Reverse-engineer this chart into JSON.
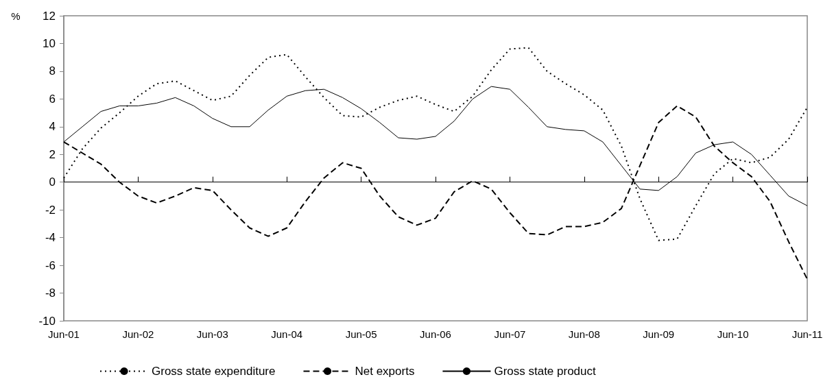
{
  "chart_data": {
    "type": "line",
    "ylabel": "%",
    "categories": [
      "Jun-01",
      null,
      null,
      null,
      "Jun-02",
      null,
      null,
      null,
      "Jun-03",
      null,
      null,
      null,
      "Jun-04",
      null,
      null,
      null,
      "Jun-05",
      null,
      null,
      null,
      "Jun-06",
      null,
      null,
      null,
      "Jun-07",
      null,
      null,
      null,
      "Jun-08",
      null,
      null,
      null,
      "Jun-09",
      null,
      null,
      null,
      "Jun-10",
      null,
      null,
      null,
      "Jun-11"
    ],
    "series": [
      {
        "name": "Gross state expenditure",
        "color": "#000000",
        "line_style": "dotted",
        "values": [
          0.3,
          2.4,
          3.9,
          5.0,
          6.2,
          7.1,
          7.3,
          6.6,
          5.9,
          6.2,
          7.7,
          9.0,
          9.2,
          7.6,
          6.1,
          4.8,
          4.7,
          5.4,
          5.9,
          6.2,
          5.6,
          5.1,
          6.2,
          8.1,
          9.6,
          9.7,
          8.0,
          7.1,
          6.3,
          5.2,
          2.6,
          -1.2,
          -4.2,
          -4.1,
          -1.7,
          0.6,
          1.7,
          1.4,
          1.8,
          3.1,
          5.4
        ]
      },
      {
        "name": "Net exports",
        "color": "#000000",
        "line_style": "dashed",
        "values": [
          2.9,
          2.1,
          1.3,
          0.0,
          -1.0,
          -1.5,
          -1.0,
          -0.4,
          -0.6,
          -2.0,
          -3.3,
          -3.9,
          -3.3,
          -1.4,
          0.3,
          1.4,
          1.0,
          -1.0,
          -2.5,
          -3.1,
          -2.6,
          -0.7,
          0.1,
          -0.5,
          -2.2,
          -3.7,
          -3.8,
          -3.2,
          -3.2,
          -2.9,
          -1.9,
          1.2,
          4.3,
          5.5,
          4.7,
          2.6,
          1.4,
          0.4,
          -1.4,
          -4.3,
          -7.0
        ]
      },
      {
        "name": "Gross state product",
        "color": "#000000",
        "line_style": "solid",
        "values": [
          2.9,
          4.0,
          5.1,
          5.5,
          5.5,
          5.7,
          6.1,
          5.5,
          4.6,
          4.0,
          4.0,
          5.2,
          6.2,
          6.6,
          6.7,
          6.1,
          5.3,
          4.3,
          3.2,
          3.1,
          3.3,
          4.4,
          6.0,
          6.9,
          6.7,
          5.4,
          4.0,
          3.8,
          3.7,
          2.9,
          1.2,
          -0.5,
          -0.6,
          0.4,
          2.1,
          2.7,
          2.9,
          2.0,
          0.5,
          -1.0,
          -1.7
        ]
      }
    ],
    "ylim": [
      -10,
      12
    ],
    "yticks": [
      -10,
      -8,
      -6,
      -4,
      -2,
      0,
      2,
      4,
      6,
      8,
      10,
      12
    ],
    "legend": "bottom",
    "marker": "none"
  }
}
